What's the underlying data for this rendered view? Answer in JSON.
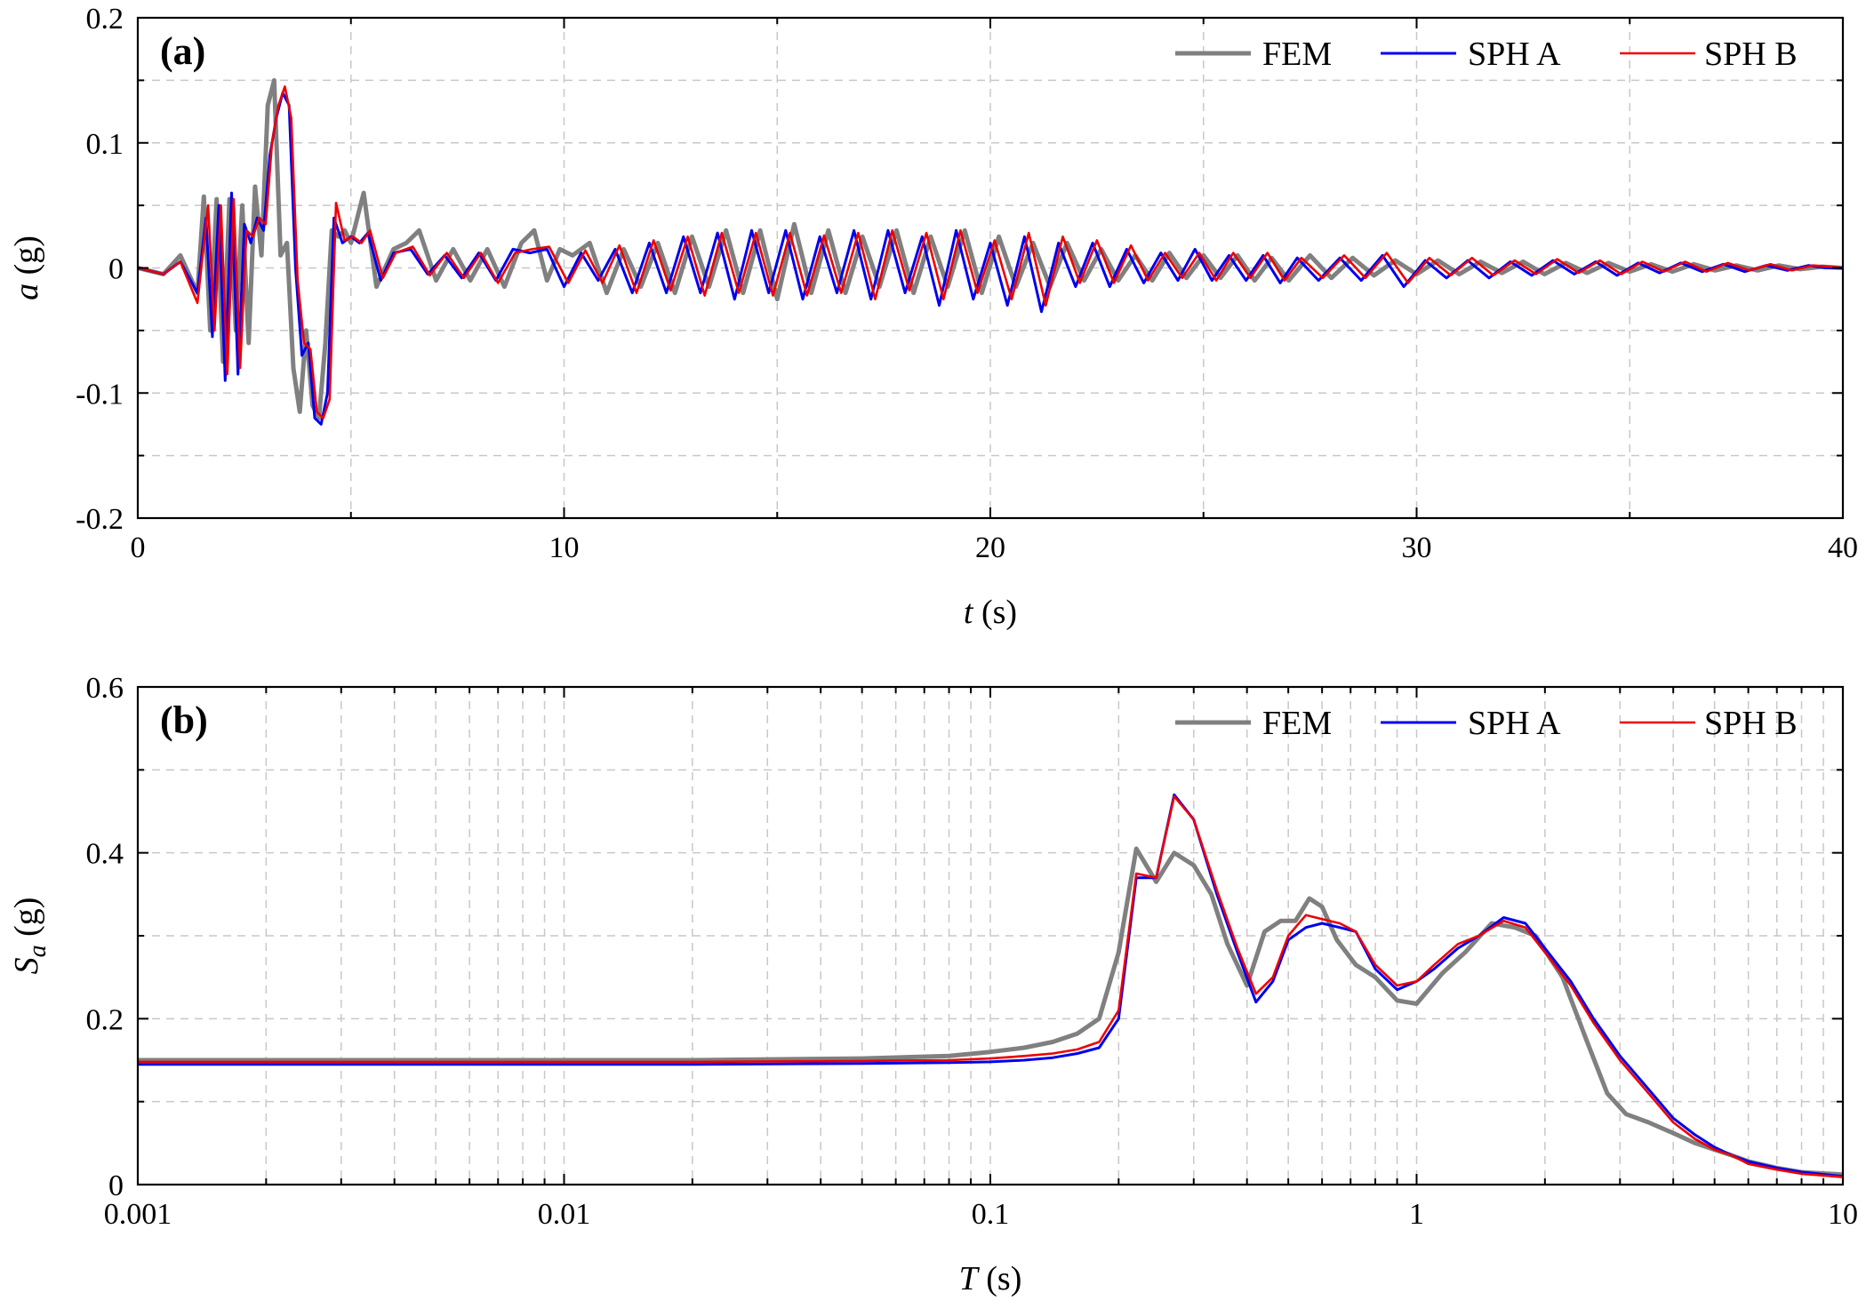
{
  "chart_data": [
    {
      "id": "a",
      "type": "line",
      "panel_label": "(a)",
      "xlabel_var": "t",
      "xlabel_unit": " (s)",
      "ylabel_var": "a",
      "ylabel_unit": " (g)",
      "xscale": "linear",
      "xlim": [
        0,
        40
      ],
      "ylim": [
        -0.2,
        0.2
      ],
      "xticks": [
        0,
        10,
        20,
        30,
        40
      ],
      "xtick_labels": [
        "0",
        "10",
        "20",
        "30",
        "40"
      ],
      "yticks": [
        -0.2,
        -0.1,
        0,
        0.1,
        0.2
      ],
      "ytick_labels": [
        "-0.2",
        "-0.1",
        "0",
        "0.1",
        "0.2"
      ],
      "grid": true,
      "legend_position": "top-right",
      "legend": [
        "FEM",
        "SPH A",
        "SPH B"
      ],
      "colors": {
        "FEM": "#808080",
        "SPH A": "#0000ee",
        "SPH B": "#ee0000"
      },
      "series": [
        {
          "name": "FEM",
          "x": [
            0,
            0.6,
            1.0,
            1.4,
            1.55,
            1.7,
            1.85,
            2.0,
            2.15,
            2.3,
            2.45,
            2.6,
            2.75,
            2.9,
            3.05,
            3.2,
            3.35,
            3.5,
            3.65,
            3.8,
            3.95,
            4.1,
            4.25,
            4.4,
            4.55,
            4.7,
            4.85,
            5.0,
            5.15,
            5.3,
            5.6,
            6.0,
            6.3,
            6.6,
            7.0,
            7.4,
            7.8,
            8.2,
            8.6,
            9.0,
            9.3,
            9.6,
            9.9,
            10.2,
            10.6,
            11.0,
            11.4,
            11.8,
            12.2,
            12.6,
            13.0,
            13.4,
            13.8,
            14.2,
            14.6,
            15.0,
            15.4,
            15.8,
            16.2,
            16.6,
            17.0,
            17.4,
            17.8,
            18.2,
            18.6,
            19.0,
            19.4,
            19.8,
            20.2,
            20.6,
            21.0,
            21.4,
            21.8,
            22.2,
            22.6,
            23.0,
            23.4,
            23.8,
            24.2,
            24.6,
            25.0,
            25.4,
            25.8,
            26.2,
            26.6,
            27.0,
            27.5,
            28.0,
            28.5,
            29.0,
            29.5,
            30.0,
            30.5,
            31.0,
            31.5,
            32.0,
            32.5,
            33.0,
            33.5,
            34.0,
            34.5,
            35.0,
            35.5,
            36.0,
            36.5,
            37.0,
            37.5,
            38.0,
            38.5,
            39.0,
            39.5,
            40.0
          ],
          "values": [
            0,
            -0.005,
            0.01,
            -0.02,
            0.057,
            -0.05,
            0.055,
            -0.075,
            0.055,
            -0.05,
            0.05,
            -0.06,
            0.065,
            0.01,
            0.13,
            0.15,
            0.01,
            0.02,
            -0.08,
            -0.115,
            -0.05,
            -0.11,
            -0.12,
            -0.06,
            0.03,
            0.025,
            0.03,
            0.02,
            0.04,
            0.06,
            -0.015,
            0.015,
            0.02,
            0.03,
            -0.01,
            0.015,
            -0.01,
            0.015,
            -0.015,
            0.02,
            0.03,
            -0.01,
            0.015,
            0.01,
            0.02,
            -0.02,
            0.015,
            -0.015,
            0.02,
            -0.02,
            0.025,
            -0.015,
            0.03,
            -0.02,
            0.03,
            -0.025,
            0.035,
            -0.02,
            0.03,
            -0.02,
            0.025,
            -0.015,
            0.03,
            -0.02,
            0.025,
            -0.015,
            0.03,
            -0.02,
            0.025,
            -0.015,
            0.02,
            -0.015,
            0.02,
            -0.01,
            0.015,
            -0.01,
            0.01,
            -0.01,
            0.012,
            -0.008,
            0.01,
            -0.008,
            0.01,
            -0.01,
            0.008,
            -0.01,
            0.01,
            -0.008,
            0.008,
            -0.006,
            0.006,
            -0.005,
            0.006,
            -0.005,
            0.005,
            -0.004,
            0.005,
            -0.005,
            0.004,
            -0.004,
            0.004,
            -0.003,
            0.003,
            -0.003,
            0.003,
            -0.002,
            0.002,
            -0.002,
            0.002,
            -0.001,
            0.001,
            0
          ]
        },
        {
          "name": "SPH A",
          "x": [
            0,
            0.6,
            1.0,
            1.4,
            1.6,
            1.75,
            1.9,
            2.05,
            2.2,
            2.35,
            2.5,
            2.65,
            2.8,
            2.95,
            3.1,
            3.25,
            3.4,
            3.55,
            3.7,
            3.85,
            4.0,
            4.15,
            4.3,
            4.45,
            4.6,
            4.8,
            5.0,
            5.2,
            5.4,
            5.7,
            6.0,
            6.4,
            6.8,
            7.2,
            7.6,
            8.0,
            8.4,
            8.8,
            9.2,
            9.6,
            10.0,
            10.4,
            10.8,
            11.2,
            11.6,
            12.0,
            12.4,
            12.8,
            13.2,
            13.6,
            14.0,
            14.4,
            14.8,
            15.2,
            15.6,
            16.0,
            16.4,
            16.8,
            17.2,
            17.6,
            18.0,
            18.4,
            18.8,
            19.2,
            19.6,
            20.0,
            20.4,
            20.8,
            21.2,
            21.6,
            22.0,
            22.4,
            22.8,
            23.2,
            23.6,
            24.0,
            24.4,
            24.8,
            25.2,
            25.6,
            26.0,
            26.4,
            26.8,
            27.2,
            27.7,
            28.2,
            28.7,
            29.2,
            29.7,
            30.2,
            30.7,
            31.2,
            31.7,
            32.2,
            32.7,
            33.2,
            33.7,
            34.2,
            34.7,
            35.2,
            35.7,
            36.2,
            36.7,
            37.2,
            37.7,
            38.2,
            38.7,
            39.2,
            39.6,
            40.0
          ],
          "values": [
            0,
            -0.005,
            0.005,
            -0.02,
            0.04,
            -0.055,
            0.05,
            -0.09,
            0.06,
            -0.085,
            0.035,
            0.02,
            0.04,
            0.03,
            0.09,
            0.12,
            0.14,
            0.13,
            0.0,
            -0.07,
            -0.06,
            -0.12,
            -0.125,
            -0.1,
            0.04,
            0.02,
            0.025,
            0.02,
            0.028,
            -0.01,
            0.012,
            0.015,
            -0.005,
            0.01,
            -0.008,
            0.012,
            -0.01,
            0.015,
            0.012,
            0.015,
            -0.015,
            0.012,
            -0.01,
            0.015,
            -0.02,
            0.02,
            -0.02,
            0.025,
            -0.02,
            0.028,
            -0.025,
            0.03,
            -0.02,
            0.03,
            -0.025,
            0.025,
            -0.02,
            0.03,
            -0.025,
            0.03,
            -0.02,
            0.025,
            -0.03,
            0.03,
            -0.025,
            0.02,
            -0.03,
            0.025,
            -0.035,
            0.02,
            -0.015,
            0.02,
            -0.015,
            0.015,
            -0.012,
            0.012,
            -0.01,
            0.015,
            -0.01,
            0.01,
            -0.01,
            0.01,
            -0.012,
            0.008,
            -0.01,
            0.008,
            -0.01,
            0.01,
            -0.015,
            0.006,
            -0.008,
            0.006,
            -0.008,
            0.005,
            -0.006,
            0.006,
            -0.005,
            0.005,
            -0.006,
            0.004,
            -0.004,
            0.004,
            -0.003,
            0.003,
            -0.003,
            0.002,
            -0.002,
            0.002,
            0,
            0
          ]
        },
        {
          "name": "SPH B",
          "x": [
            0,
            0.6,
            1.0,
            1.4,
            1.65,
            1.8,
            1.95,
            2.1,
            2.25,
            2.4,
            2.55,
            2.7,
            2.85,
            3.0,
            3.15,
            3.3,
            3.45,
            3.6,
            3.75,
            3.9,
            4.05,
            4.2,
            4.35,
            4.5,
            4.65,
            4.85,
            5.05,
            5.25,
            5.45,
            5.75,
            6.05,
            6.45,
            6.85,
            7.25,
            7.65,
            8.05,
            8.45,
            8.85,
            9.25,
            9.65,
            10.1,
            10.5,
            10.9,
            11.3,
            11.7,
            12.1,
            12.5,
            12.9,
            13.3,
            13.7,
            14.1,
            14.5,
            14.9,
            15.3,
            15.7,
            16.1,
            16.5,
            16.9,
            17.3,
            17.7,
            18.1,
            18.5,
            18.9,
            19.3,
            19.7,
            20.1,
            20.5,
            20.9,
            21.3,
            21.7,
            22.1,
            22.5,
            22.9,
            23.3,
            23.7,
            24.1,
            24.5,
            24.9,
            25.3,
            25.7,
            26.1,
            26.5,
            26.9,
            27.3,
            27.8,
            28.3,
            28.8,
            29.3,
            29.8,
            30.3,
            30.8,
            31.3,
            31.8,
            32.3,
            32.8,
            33.3,
            33.8,
            34.3,
            34.8,
            35.3,
            35.8,
            36.3,
            36.8,
            37.3,
            37.8,
            38.3,
            38.8,
            39.3,
            39.7,
            40.0
          ],
          "values": [
            0,
            -0.005,
            0.005,
            -0.028,
            0.05,
            -0.05,
            0.05,
            -0.085,
            0.055,
            -0.08,
            0.03,
            0.025,
            0.04,
            0.035,
            0.1,
            0.13,
            0.145,
            0.12,
            -0.01,
            -0.06,
            -0.065,
            -0.115,
            -0.12,
            -0.105,
            0.052,
            0.022,
            0.025,
            0.02,
            0.03,
            -0.008,
            0.012,
            0.017,
            -0.006,
            0.012,
            -0.008,
            0.012,
            -0.012,
            0.012,
            0.015,
            0.017,
            -0.012,
            0.014,
            -0.012,
            0.018,
            -0.02,
            0.022,
            -0.018,
            0.025,
            -0.022,
            0.028,
            -0.02,
            0.028,
            -0.022,
            0.028,
            -0.022,
            0.026,
            -0.02,
            0.028,
            -0.025,
            0.03,
            -0.018,
            0.028,
            -0.025,
            0.03,
            -0.02,
            0.022,
            -0.025,
            0.028,
            -0.03,
            0.025,
            -0.012,
            0.022,
            -0.012,
            0.018,
            -0.01,
            0.012,
            -0.008,
            0.012,
            -0.01,
            0.012,
            -0.008,
            0.012,
            -0.01,
            0.008,
            -0.008,
            0.01,
            -0.008,
            0.012,
            -0.012,
            0.008,
            -0.006,
            0.008,
            -0.006,
            0.006,
            -0.005,
            0.007,
            -0.004,
            0.006,
            -0.005,
            0.005,
            -0.003,
            0.005,
            -0.003,
            0.004,
            -0.002,
            0.003,
            -0.002,
            0.002,
            0.001,
            0
          ]
        }
      ]
    },
    {
      "id": "b",
      "type": "line",
      "panel_label": "(b)",
      "xlabel_var": "T",
      "xlabel_unit": " (s)",
      "ylabel_var": "S",
      "ylabel_sub": "a",
      "ylabel_unit": " (g)",
      "xscale": "log",
      "xlim": [
        0.001,
        10
      ],
      "ylim": [
        0,
        0.6
      ],
      "xticks": [
        0.001,
        0.01,
        0.1,
        1,
        10
      ],
      "xtick_labels": [
        "0.001",
        "0.01",
        "0.1",
        "1",
        "10"
      ],
      "yticks": [
        0,
        0.2,
        0.4,
        0.6
      ],
      "ytick_labels": [
        "0",
        "0.2",
        "0.4",
        "0.6"
      ],
      "grid": true,
      "legend_position": "top-right",
      "legend": [
        "FEM",
        "SPH A",
        "SPH B"
      ],
      "colors": {
        "FEM": "#808080",
        "SPH A": "#0000ee",
        "SPH B": "#ee0000"
      },
      "series": [
        {
          "name": "FEM",
          "x": [
            0.001,
            0.003,
            0.01,
            0.02,
            0.05,
            0.08,
            0.1,
            0.12,
            0.14,
            0.16,
            0.18,
            0.2,
            0.22,
            0.245,
            0.27,
            0.3,
            0.33,
            0.36,
            0.4,
            0.44,
            0.48,
            0.52,
            0.56,
            0.6,
            0.65,
            0.72,
            0.8,
            0.9,
            1.0,
            1.15,
            1.3,
            1.5,
            1.7,
            1.9,
            2.2,
            2.5,
            2.8,
            3.1,
            3.5,
            4.0,
            4.5,
            5.0,
            5.5,
            6.0,
            7.0,
            8.0,
            10.0
          ],
          "values": [
            0.15,
            0.15,
            0.15,
            0.15,
            0.152,
            0.155,
            0.16,
            0.165,
            0.172,
            0.182,
            0.2,
            0.28,
            0.405,
            0.365,
            0.4,
            0.385,
            0.35,
            0.29,
            0.24,
            0.305,
            0.318,
            0.318,
            0.345,
            0.335,
            0.295,
            0.265,
            0.25,
            0.222,
            0.218,
            0.255,
            0.28,
            0.315,
            0.31,
            0.3,
            0.25,
            0.175,
            0.11,
            0.085,
            0.075,
            0.062,
            0.05,
            0.042,
            0.035,
            0.028,
            0.02,
            0.015,
            0.012
          ]
        },
        {
          "name": "SPH A",
          "x": [
            0.001,
            0.003,
            0.01,
            0.02,
            0.05,
            0.08,
            0.1,
            0.12,
            0.14,
            0.16,
            0.18,
            0.2,
            0.22,
            0.245,
            0.27,
            0.3,
            0.34,
            0.38,
            0.42,
            0.46,
            0.5,
            0.55,
            0.6,
            0.66,
            0.72,
            0.8,
            0.9,
            1.0,
            1.1,
            1.25,
            1.4,
            1.6,
            1.8,
            2.0,
            2.3,
            2.6,
            3.0,
            3.5,
            4.0,
            4.5,
            5.0,
            5.5,
            6.0,
            7.0,
            8.0,
            10.0
          ],
          "values": [
            0.145,
            0.145,
            0.145,
            0.145,
            0.146,
            0.147,
            0.148,
            0.15,
            0.153,
            0.158,
            0.165,
            0.2,
            0.37,
            0.37,
            0.47,
            0.44,
            0.35,
            0.28,
            0.22,
            0.245,
            0.295,
            0.31,
            0.315,
            0.31,
            0.305,
            0.26,
            0.235,
            0.245,
            0.26,
            0.285,
            0.3,
            0.322,
            0.315,
            0.285,
            0.245,
            0.2,
            0.155,
            0.115,
            0.08,
            0.06,
            0.045,
            0.035,
            0.028,
            0.02,
            0.015,
            0.01
          ]
        },
        {
          "name": "SPH B",
          "x": [
            0.001,
            0.003,
            0.01,
            0.02,
            0.05,
            0.08,
            0.1,
            0.12,
            0.14,
            0.16,
            0.18,
            0.2,
            0.22,
            0.245,
            0.27,
            0.3,
            0.34,
            0.38,
            0.42,
            0.46,
            0.5,
            0.55,
            0.6,
            0.66,
            0.72,
            0.8,
            0.9,
            1.0,
            1.1,
            1.25,
            1.4,
            1.6,
            1.8,
            2.0,
            2.3,
            2.6,
            3.0,
            3.5,
            4.0,
            4.5,
            5.0,
            5.5,
            6.0,
            7.0,
            8.0,
            10.0
          ],
          "values": [
            0.148,
            0.148,
            0.148,
            0.148,
            0.149,
            0.15,
            0.152,
            0.155,
            0.158,
            0.163,
            0.172,
            0.21,
            0.375,
            0.37,
            0.468,
            0.44,
            0.355,
            0.285,
            0.23,
            0.25,
            0.3,
            0.325,
            0.32,
            0.315,
            0.305,
            0.265,
            0.24,
            0.245,
            0.265,
            0.29,
            0.3,
            0.318,
            0.31,
            0.28,
            0.24,
            0.195,
            0.15,
            0.11,
            0.075,
            0.055,
            0.042,
            0.035,
            0.025,
            0.018,
            0.013,
            0.009
          ]
        }
      ]
    }
  ]
}
